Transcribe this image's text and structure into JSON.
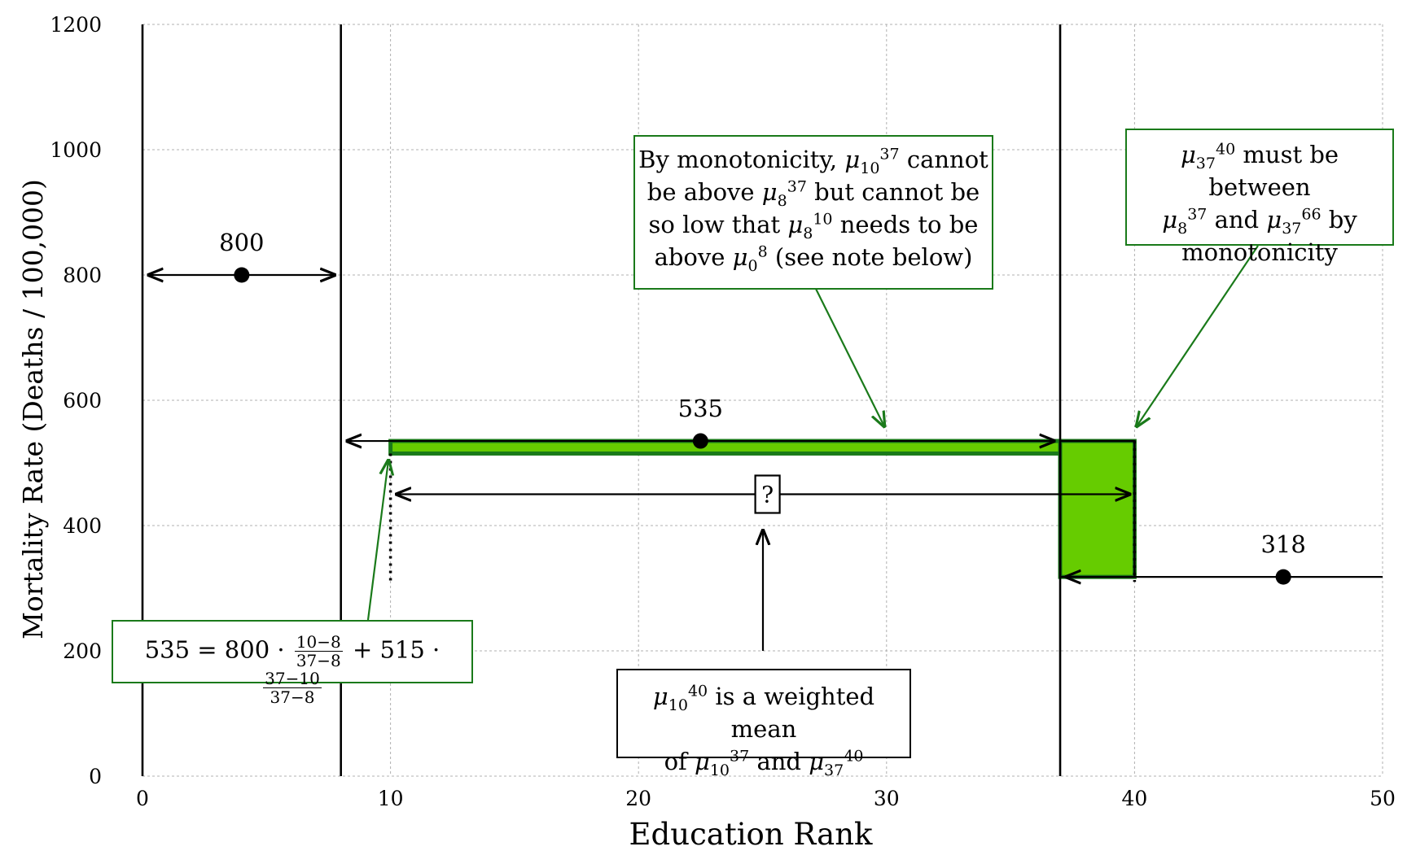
{
  "chart_data": {
    "type": "scatter",
    "title": "",
    "xlabel": "Education Rank",
    "ylabel": "Mortality Rate (Deaths / 100,000)",
    "xlim": [
      0,
      50
    ],
    "ylim": [
      0,
      1200
    ],
    "xticks": [
      "0",
      "10",
      "20",
      "30",
      "40",
      "50"
    ],
    "yticks": [
      "0",
      "200",
      "400",
      "600",
      "800",
      "1000",
      "1200"
    ],
    "grid": true,
    "points": [
      {
        "x": 4,
        "y": 800,
        "label": "800",
        "range": [
          0,
          8
        ]
      },
      {
        "x": 22.5,
        "y": 535,
        "label": "535",
        "range": [
          8,
          37
        ]
      },
      {
        "x": 46,
        "y": 318,
        "label": "318",
        "range": [
          37,
          50
        ]
      }
    ],
    "bracket_lines_x": [
      0,
      8,
      37
    ],
    "unknown_range": {
      "x": [
        10,
        40
      ],
      "y": 450,
      "label": "?"
    },
    "green_bounds": [
      {
        "x": [
          10,
          37
        ],
        "y": [
          515,
          535
        ]
      },
      {
        "x": [
          37,
          40
        ],
        "y": [
          318,
          535
        ]
      }
    ]
  },
  "annotations": {
    "monotonicity": {
      "l1a": "By monotonicity,",
      "l1b": "cannot",
      "l2a": "be above",
      "l2b": "but cannot be",
      "l3a": "so low that",
      "l3b": "needs to be",
      "l4a": "above",
      "l4b": "(see note below)"
    },
    "between": {
      "l1": "must be between",
      "l2": "and",
      "l2b": "by",
      "l3": "monotonicity"
    },
    "formula": {
      "lhs": "535 = 800 ·",
      "f1_num": "10−8",
      "f1_den": "37−8",
      "mid": "+ 515 ·",
      "f2_num": "37−10",
      "f2_den": "37−8"
    },
    "weighted": {
      "l1": "is a weighted mean",
      "l2a": "of",
      "l2b": "and"
    }
  },
  "colors": {
    "green_fill": "#66cc00",
    "green_edge": "#1a7a1a",
    "grid": "#b0b0b0"
  }
}
